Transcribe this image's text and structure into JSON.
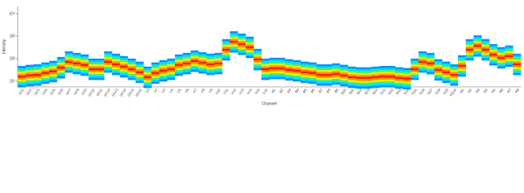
{
  "chart_data": {
    "type": "heatmap-spectrum",
    "x_label": "Channel",
    "y_label": "Intensity",
    "categories": [
      "UV1",
      "UV2",
      "UV3",
      "UV4",
      "UV5",
      "UV6",
      "UV7",
      "UV8",
      "UV9",
      "UV10",
      "UV11",
      "UV12",
      "UV13",
      "UV14",
      "UV15",
      "UV16",
      "V1",
      "V2",
      "V3",
      "V4",
      "V5",
      "V6",
      "V7",
      "V8",
      "V9",
      "V10",
      "V11",
      "V12",
      "V13",
      "V14",
      "V15",
      "V16",
      "B1",
      "B2",
      "B3",
      "B4",
      "B5",
      "B6",
      "B7",
      "B8",
      "B9",
      "B10",
      "B11",
      "B12",
      "B13",
      "B14",
      "YG1",
      "YG2",
      "YG3",
      "YG4",
      "YG5",
      "YG6",
      "YG7",
      "YG8",
      "YG9",
      "YG10",
      "R1",
      "R2",
      "R3",
      "R4",
      "R5",
      "R6",
      "R7",
      "R8"
    ],
    "values": [
      16,
      18,
      19,
      23,
      27,
      40,
      72,
      61,
      52,
      34,
      34,
      72,
      56,
      44,
      34,
      25,
      15,
      23,
      29,
      34,
      52,
      61,
      78,
      66,
      56,
      61,
      250,
      560,
      440,
      320,
      92,
      34,
      37,
      37,
      32,
      29,
      25,
      23,
      19,
      19,
      21,
      18,
      15,
      14,
      14,
      15,
      16,
      16,
      14,
      13,
      34,
      72,
      61,
      32,
      25,
      19,
      48,
      250,
      370,
      250,
      150,
      110,
      130,
      56
    ],
    "log_scale": true,
    "ylim": [
      5.6,
      21000
    ],
    "yticks": [
      {
        "value": 10,
        "label": "10¹"
      },
      {
        "value": 100,
        "label": "10²"
      },
      {
        "value": 1000,
        "label": "10³"
      },
      {
        "value": 10000,
        "label": "10⁴"
      }
    ],
    "colormap": [
      "#0090ff",
      "#00d8ff",
      "#40f080",
      "#f0f000",
      "#ff9000",
      "#f02000",
      "#ff9000",
      "#f0f000",
      "#40f080",
      "#00d8ff",
      "#0090ff"
    ]
  }
}
